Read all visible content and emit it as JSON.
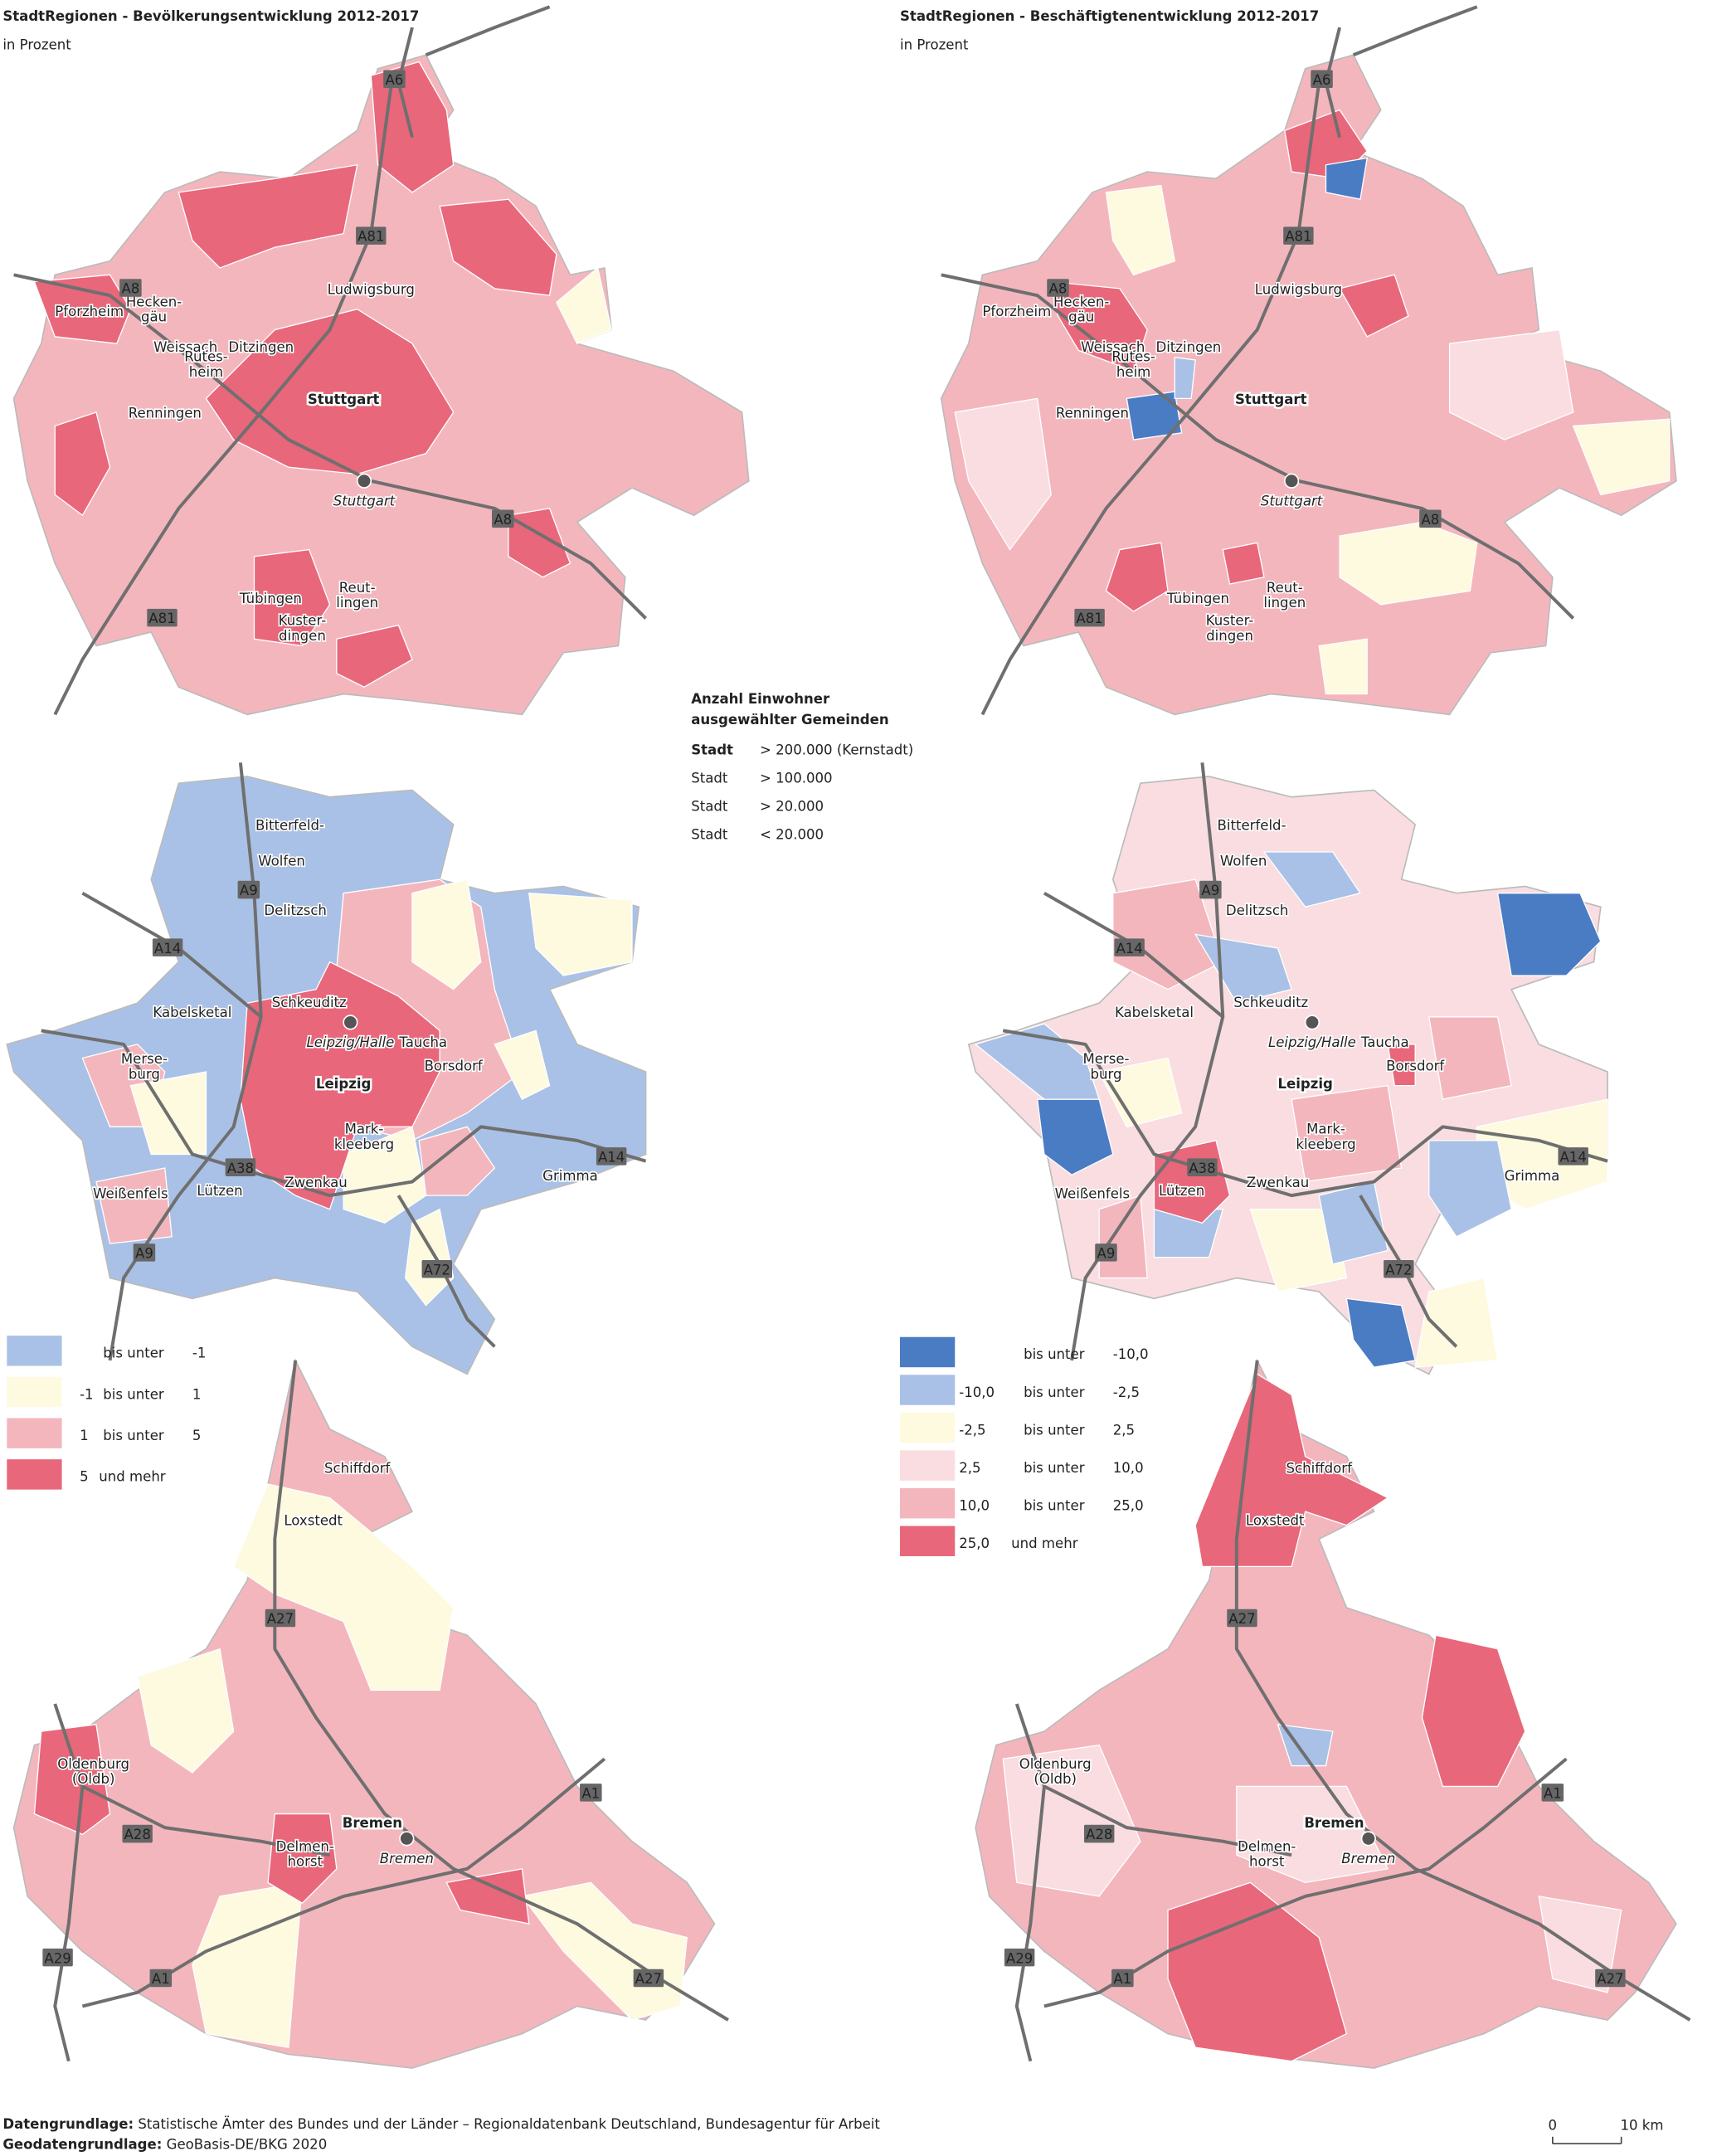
{
  "panels": [
    {
      "title": "StadtRegionen - Bevölkerungsentwicklung 2012-2017",
      "subtitle": "in Prozent",
      "legend": [
        {
          "color": "#a9c1e6",
          "text": "bis unter",
          "to": "-1"
        },
        {
          "color": "#fdfae0",
          "from": "-1",
          "text": "bis unter",
          "to": "1"
        },
        {
          "color": "#f4b6bd",
          "from": "1",
          "text": "bis unter",
          "to": "5"
        },
        {
          "color": "#e8677a",
          "from": "5",
          "text": "und mehr"
        }
      ]
    },
    {
      "title": "StadtRegionen - Beschäftigtenentwicklung 2012-2017",
      "subtitle": "in Prozent",
      "legend": [
        {
          "color": "#4a7cc4",
          "text": "bis unter",
          "to": "-10,0"
        },
        {
          "color": "#a9c1e6",
          "from": "-10,0",
          "text": "bis unter",
          "to": "-2,5"
        },
        {
          "color": "#fdfae0",
          "from": "-2,5",
          "text": "bis unter",
          "to": "2,5"
        },
        {
          "color": "#f9dde1",
          "from": "2,5",
          "text": "bis unter",
          "to": "10,0"
        },
        {
          "color": "#f4b6bd",
          "from": "10,0",
          "text": "bis unter",
          "to": "25,0"
        },
        {
          "color": "#e8677a",
          "from": "25,0",
          "text": "und mehr"
        }
      ]
    }
  ],
  "regions": [
    {
      "labels": [
        "Pforzheim",
        [
          "Hecken-",
          "gäu"
        ],
        "Weissach",
        [
          "Rutes-",
          "heim"
        ],
        "Ditzingen",
        "Ludwigsburg",
        "Stuttgart",
        "Renningen",
        "Stuttgart",
        "Tübingen",
        [
          "Reut-",
          "lingen"
        ],
        [
          "Kuster-",
          "dingen"
        ]
      ],
      "roads": [
        "A6",
        "A81",
        "A8",
        "A8",
        "A81"
      ]
    },
    {
      "labels": [
        "Bitterfeld-",
        "Wolfen",
        "Delitzsch",
        "Schkeuditz",
        "Kabelsketal",
        "Leipzig/Halle",
        "Taucha",
        "Borsdorf",
        "Leipzig",
        [
          "Merse-",
          "burg"
        ],
        [
          "Mark-",
          "kleeberg"
        ],
        "Zwenkau",
        "Lützen",
        "Weißenfels",
        "Grimma"
      ],
      "roads": [
        "A9",
        "A14",
        "A38",
        "A14",
        "A9",
        "A72"
      ]
    },
    {
      "labels": [
        "Schiffdorf",
        "Loxstedt",
        [
          "Oldenburg",
          "(Oldb)"
        ],
        "Bremen",
        "Bremen",
        [
          "Delmen-",
          "horst"
        ]
      ],
      "roads": [
        "A27",
        "A1",
        "A28",
        "A29",
        "A1",
        "A27"
      ]
    }
  ],
  "population_legend": {
    "title": [
      "Anzahl Einwohner",
      "ausgewählter Gemeinden"
    ],
    "rows": [
      {
        "name": "Stadt",
        "threshold": "> 200.000 (Kernstadt)"
      },
      {
        "name": "Stadt",
        "threshold": "> 100.000"
      },
      {
        "name": "Stadt",
        "threshold": ">  20.000"
      },
      {
        "name": "Stadt",
        "threshold": "<  20.000"
      }
    ]
  },
  "sources": [
    {
      "label": "Datengrundlage:",
      "text": "Statistische Ämter des Bundes und der Länder – Regionaldatenbank Deutschland, Bundesagentur für Arbeit"
    },
    {
      "label": "Geodatengrundlage:",
      "text": "GeoBasis-DE/BKG 2020"
    }
  ],
  "scale": [
    "0",
    "10 km"
  ]
}
